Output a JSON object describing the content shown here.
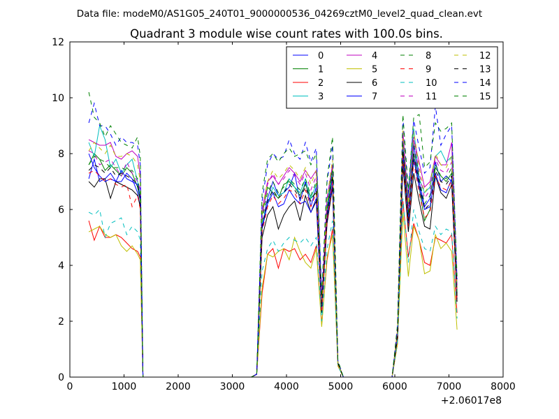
{
  "header": {
    "suptitle": "Data file: modeM0/AS1G05_240T01_9000000536_04269cztM0_level2_quad_clean.evt"
  },
  "chart_data": {
    "type": "line",
    "title": "Quadrant 3 module wise count rates with 100.0s bins.",
    "xlabel": "",
    "ylabel": "",
    "xlim": [
      0,
      8000
    ],
    "ylim": [
      0,
      12
    ],
    "x_offset_label": "+2.06017e8",
    "xticks": [
      0,
      1000,
      2000,
      3000,
      4000,
      5000,
      6000,
      7000,
      8000
    ],
    "xtick_labels": [
      "0",
      "1000",
      "2000",
      "3000",
      "4000",
      "5000",
      "6000",
      "7000",
      "8000"
    ],
    "yticks": [
      0,
      2,
      4,
      6,
      8,
      10,
      12
    ],
    "ytick_labels": [
      "0",
      "2",
      "4",
      "6",
      "8",
      "10",
      "12"
    ],
    "legend_position": "top-right",
    "legend_columns": 4,
    "x": [
      350,
      450,
      550,
      650,
      750,
      850,
      950,
      1050,
      1150,
      1250,
      1300,
      1350,
      1450,
      1550,
      1650,
      1750,
      1850,
      1950,
      2050,
      2150,
      2250,
      2350,
      2450,
      2550,
      2650,
      2750,
      2850,
      2950,
      3050,
      3150,
      3250,
      3350,
      3450,
      3550,
      3650,
      3750,
      3850,
      3950,
      4050,
      4150,
      4250,
      4350,
      4450,
      4550,
      4650,
      4750,
      4850,
      4950,
      5050,
      5150,
      5250,
      5350,
      5450,
      5550,
      5650,
      5750,
      5850,
      5950,
      6050,
      6150,
      6250,
      6350,
      6450,
      6550,
      6650,
      6750,
      6850,
      6950,
      7050,
      7150
    ],
    "series": [
      {
        "name": "0",
        "color": "#0000ff",
        "style": "solid",
        "values": [
          7.1,
          7.8,
          7.0,
          7.1,
          7.3,
          7.0,
          7.0,
          7.3,
          7.1,
          6.6,
          6.1,
          0,
          0,
          0,
          0,
          0,
          0,
          0,
          0,
          0,
          0,
          0,
          0,
          0,
          0,
          0,
          0,
          0,
          0,
          0,
          0,
          0,
          0.1,
          5.4,
          6.4,
          7.0,
          6.5,
          6.6,
          6.8,
          7.3,
          6.3,
          7.0,
          6.1,
          6.8,
          2.5,
          5.8,
          7.2,
          0.5,
          0,
          0,
          0,
          0,
          0,
          0,
          0,
          0,
          0,
          0,
          1.5,
          8.3,
          5.5,
          8.3,
          7.0,
          6.1,
          6.4,
          7.7,
          7.0,
          7.2,
          7.0,
          2.8
        ]
      },
      {
        "name": "1",
        "color": "#008000",
        "style": "solid",
        "values": [
          7.6,
          8.0,
          7.8,
          7.4,
          7.6,
          7.4,
          7.2,
          7.5,
          7.3,
          6.8,
          6.3,
          0,
          0,
          0,
          0,
          0,
          0,
          0,
          0,
          0,
          0,
          0,
          0,
          0,
          0,
          0,
          0,
          0,
          0,
          0,
          0,
          0,
          0.1,
          5.8,
          6.8,
          6.6,
          6.4,
          6.9,
          7.0,
          6.8,
          6.5,
          6.9,
          6.4,
          6.6,
          2.6,
          6.0,
          7.4,
          0.5,
          0,
          0,
          0,
          0,
          0,
          0,
          0,
          0,
          0,
          0,
          1.6,
          8.6,
          5.8,
          8.0,
          6.8,
          5.6,
          6.0,
          7.5,
          7.2,
          7.0,
          7.3,
          3.0
        ]
      },
      {
        "name": "2",
        "color": "#ff0000",
        "style": "solid",
        "values": [
          5.6,
          4.9,
          5.4,
          5.0,
          5.0,
          5.1,
          5.0,
          4.8,
          4.6,
          4.5,
          4.3,
          0,
          0,
          0,
          0,
          0,
          0,
          0,
          0,
          0,
          0,
          0,
          0,
          0,
          0,
          0,
          0,
          0,
          0,
          0,
          0,
          0,
          0.1,
          3.0,
          4.4,
          4.6,
          3.9,
          4.6,
          4.5,
          4.6,
          4.2,
          4.4,
          4.1,
          4.7,
          1.9,
          4.2,
          5.3,
          0.4,
          0,
          0,
          0,
          0,
          0,
          0,
          0,
          0,
          0,
          0,
          1.2,
          6.3,
          4.3,
          5.5,
          4.9,
          4.1,
          4.0,
          5.0,
          4.9,
          4.8,
          5.1,
          2.3
        ]
      },
      {
        "name": "3",
        "color": "#00bfbf",
        "style": "solid",
        "values": [
          8.4,
          7.9,
          9.0,
          8.5,
          7.5,
          7.8,
          7.3,
          7.6,
          7.8,
          7.0,
          6.5,
          0,
          0,
          0,
          0,
          0,
          0,
          0,
          0,
          0,
          0,
          0,
          0,
          0,
          0,
          0,
          0,
          0,
          0,
          0,
          0,
          0,
          0.1,
          5.5,
          6.2,
          6.8,
          6.5,
          6.6,
          7.1,
          6.8,
          6.6,
          7.1,
          6.4,
          6.9,
          2.5,
          6.1,
          7.5,
          0.5,
          0,
          0,
          0,
          0,
          0,
          0,
          0,
          0,
          0,
          0,
          1.6,
          8.4,
          6.4,
          8.9,
          7.1,
          6.6,
          6.8,
          7.9,
          8.1,
          7.7,
          7.9,
          3.2
        ]
      },
      {
        "name": "4",
        "color": "#bf00bf",
        "style": "solid",
        "values": [
          8.5,
          8.4,
          8.3,
          8.3,
          8.4,
          7.9,
          7.8,
          8.0,
          8.1,
          7.9,
          7.2,
          0,
          0,
          0,
          0,
          0,
          0,
          0,
          0,
          0,
          0,
          0,
          0,
          0,
          0,
          0,
          0,
          0,
          0,
          0,
          0,
          0,
          0.1,
          6.0,
          7.0,
          7.2,
          6.9,
          7.2,
          7.5,
          7.3,
          7.0,
          7.4,
          7.1,
          7.4,
          2.7,
          6.4,
          7.6,
          0.5,
          0,
          0,
          0,
          0,
          0,
          0,
          0,
          0,
          0,
          0,
          1.7,
          8.8,
          6.2,
          8.5,
          7.7,
          6.8,
          7.0,
          7.9,
          7.6,
          7.6,
          8.4,
          3.3
        ]
      },
      {
        "name": "5",
        "color": "#bfbf00",
        "style": "solid",
        "values": [
          5.2,
          5.3,
          5.4,
          5.1,
          5.0,
          5.1,
          4.7,
          4.5,
          4.7,
          4.4,
          4.2,
          0,
          0,
          0,
          0,
          0,
          0,
          0,
          0,
          0,
          0,
          0,
          0,
          0,
          0,
          0,
          0,
          0,
          0,
          0,
          0,
          0,
          0.1,
          3.2,
          4.4,
          4.3,
          4.5,
          4.6,
          4.2,
          5.0,
          4.5,
          4.1,
          3.9,
          4.6,
          1.8,
          4.3,
          5.1,
          0.4,
          0,
          0,
          0,
          0,
          0,
          0,
          0,
          0,
          0,
          0,
          1.2,
          5.9,
          3.6,
          5.4,
          4.9,
          3.7,
          3.8,
          5.1,
          4.6,
          4.8,
          4.5,
          1.7
        ]
      },
      {
        "name": "6",
        "color": "#000000",
        "style": "solid",
        "values": [
          7.0,
          6.8,
          7.1,
          7.1,
          6.4,
          7.0,
          6.9,
          6.8,
          6.7,
          6.5,
          6.1,
          0,
          0,
          0,
          0,
          0,
          0,
          0,
          0,
          0,
          0,
          0,
          0,
          0,
          0,
          0,
          0,
          0,
          0,
          0,
          0,
          0,
          0.1,
          5.0,
          5.8,
          6.1,
          5.3,
          5.8,
          6.1,
          6.3,
          5.6,
          6.5,
          5.9,
          6.3,
          2.3,
          5.5,
          6.8,
          0.5,
          0,
          0,
          0,
          0,
          0,
          0,
          0,
          0,
          0,
          0,
          1.4,
          7.6,
          5.2,
          7.3,
          6.3,
          5.4,
          5.3,
          7.2,
          6.6,
          6.4,
          6.9,
          2.7
        ]
      },
      {
        "name": "7",
        "color": "#0000ff",
        "style": "solid",
        "values": [
          8.0,
          7.5,
          7.2,
          7.0,
          7.1,
          7.0,
          7.4,
          7.1,
          7.0,
          6.9,
          6.4,
          0,
          0,
          0,
          0,
          0,
          0,
          0,
          0,
          0,
          0,
          0,
          0,
          0,
          0,
          0,
          0,
          0,
          0,
          0,
          0,
          0,
          0.1,
          5.3,
          6.2,
          6.6,
          6.1,
          6.2,
          6.7,
          6.4,
          6.2,
          6.3,
          5.9,
          6.4,
          2.4,
          5.7,
          6.9,
          0.5,
          0,
          0,
          0,
          0,
          0,
          0,
          0,
          0,
          0,
          0,
          1.5,
          8.0,
          5.6,
          7.8,
          6.8,
          6.0,
          6.1,
          7.3,
          6.7,
          6.6,
          7.1,
          2.9
        ]
      },
      {
        "name": "8",
        "color": "#008000",
        "style": "dashed",
        "values": [
          7.6,
          7.9,
          7.8,
          7.7,
          7.5,
          7.5,
          7.5,
          7.4,
          7.4,
          7.1,
          6.6,
          0,
          0,
          0,
          0,
          0,
          0,
          0,
          0,
          0,
          0,
          0,
          0,
          0,
          0,
          0,
          0,
          0,
          0,
          0,
          0,
          0,
          0.1,
          5.6,
          6.6,
          7.0,
          6.6,
          6.8,
          7.1,
          6.9,
          6.7,
          7.1,
          6.5,
          7.0,
          2.6,
          6.1,
          7.5,
          0.5,
          0,
          0,
          0,
          0,
          0,
          0,
          0,
          0,
          0,
          0,
          1.6,
          8.4,
          5.9,
          8.4,
          7.1,
          6.2,
          6.5,
          7.6,
          7.2,
          7.1,
          7.5,
          3.0
        ]
      },
      {
        "name": "9",
        "color": "#ff0000",
        "style": "dashed",
        "values": [
          7.3,
          7.4,
          7.2,
          7.0,
          7.1,
          6.9,
          6.8,
          6.9,
          6.1,
          6.5,
          6.0,
          0,
          0,
          0,
          0,
          0,
          0,
          0,
          0,
          0,
          0,
          0,
          0,
          0,
          0,
          0,
          0,
          0,
          0,
          0,
          0,
          0,
          0.1,
          5.2,
          6.1,
          6.5,
          6.2,
          6.4,
          6.7,
          6.6,
          6.2,
          6.7,
          6.1,
          6.6,
          2.4,
          5.6,
          7.0,
          0.5,
          0,
          0,
          0,
          0,
          0,
          0,
          0,
          0,
          0,
          0,
          1.5,
          7.9,
          5.4,
          7.7,
          6.6,
          5.7,
          5.9,
          7.2,
          6.8,
          6.7,
          7.0,
          2.8
        ]
      },
      {
        "name": "10",
        "color": "#00bfbf",
        "style": "dashed",
        "values": [
          5.9,
          5.8,
          6.0,
          5.0,
          5.5,
          5.6,
          5.7,
          5.1,
          5.4,
          5.2,
          4.9,
          0,
          0,
          0,
          0,
          0,
          0,
          0,
          0,
          0,
          0,
          0,
          0,
          0,
          0,
          0,
          0,
          0,
          0,
          0,
          0,
          0,
          0.1,
          3.8,
          4.6,
          4.9,
          4.5,
          4.8,
          5.0,
          4.9,
          4.8,
          5.0,
          4.7,
          5.0,
          2.0,
          4.6,
          5.6,
          0.4,
          0,
          0,
          0,
          0,
          0,
          0,
          0,
          0,
          0,
          0,
          1.3,
          6.4,
          4.1,
          6.0,
          5.2,
          4.6,
          4.5,
          5.4,
          5.1,
          5.3,
          5.2,
          2.1
        ]
      },
      {
        "name": "11",
        "color": "#bf00bf",
        "style": "dashed",
        "values": [
          8.1,
          8.0,
          7.6,
          7.7,
          7.8,
          7.5,
          7.2,
          7.7,
          7.3,
          7.0,
          6.7,
          0,
          0,
          0,
          0,
          0,
          0,
          0,
          0,
          0,
          0,
          0,
          0,
          0,
          0,
          0,
          0,
          0,
          0,
          0,
          0,
          0,
          0.1,
          5.7,
          6.9,
          7.3,
          6.9,
          7.1,
          7.4,
          7.2,
          6.9,
          7.3,
          6.7,
          7.2,
          2.6,
          6.3,
          7.6,
          0.5,
          0,
          0,
          0,
          0,
          0,
          0,
          0,
          0,
          0,
          0,
          1.6,
          8.6,
          6.0,
          8.6,
          7.3,
          6.4,
          6.7,
          7.8,
          7.4,
          7.3,
          7.7,
          3.1
        ]
      },
      {
        "name": "12",
        "color": "#bfbf00",
        "style": "dashed",
        "values": [
          8.1,
          8.4,
          8.2,
          8.0,
          8.3,
          7.9,
          7.9,
          8.0,
          7.9,
          7.6,
          7.0,
          0,
          0,
          0,
          0,
          0,
          0,
          0,
          0,
          0,
          0,
          0,
          0,
          0,
          0,
          0,
          0,
          0,
          0,
          0,
          0,
          0,
          0.1,
          5.9,
          7.0,
          7.4,
          7.1,
          7.3,
          7.6,
          7.4,
          7.1,
          7.5,
          6.9,
          7.4,
          2.7,
          6.4,
          7.8,
          0.5,
          0,
          0,
          0,
          0,
          0,
          0,
          0,
          0,
          0,
          0,
          1.7,
          8.9,
          6.2,
          8.8,
          7.5,
          6.6,
          6.9,
          8.0,
          7.6,
          7.5,
          7.9,
          3.2
        ]
      },
      {
        "name": "13",
        "color": "#000000",
        "style": "dashed",
        "values": [
          7.4,
          7.6,
          7.5,
          7.3,
          7.5,
          7.2,
          7.3,
          7.2,
          7.1,
          6.9,
          6.4,
          0,
          0,
          0,
          0,
          0,
          0,
          0,
          0,
          0,
          0,
          0,
          0,
          0,
          0,
          0,
          0,
          0,
          0,
          0,
          0,
          0,
          0.1,
          5.4,
          6.3,
          6.7,
          6.4,
          6.6,
          6.9,
          6.7,
          6.4,
          6.8,
          6.3,
          6.7,
          2.5,
          5.8,
          7.2,
          0.5,
          0,
          0,
          0,
          0,
          0,
          0,
          0,
          0,
          0,
          0,
          1.5,
          8.1,
          5.6,
          8.0,
          6.9,
          6.0,
          6.2,
          7.4,
          7.0,
          6.9,
          7.2,
          2.9
        ]
      },
      {
        "name": "14",
        "color": "#0000ff",
        "style": "dashed",
        "values": [
          9.1,
          9.8,
          9.0,
          9.0,
          8.7,
          8.3,
          8.6,
          8.4,
          8.4,
          8.3,
          7.6,
          0,
          0,
          0,
          0,
          0,
          0,
          0,
          0,
          0,
          0,
          0,
          0,
          0,
          0,
          0,
          0,
          0,
          0,
          0,
          0,
          0,
          0.1,
          6.3,
          7.6,
          8.0,
          7.8,
          7.9,
          8.5,
          8.0,
          7.8,
          8.4,
          7.7,
          8.2,
          3.0,
          7.0,
          8.3,
          0.6,
          0,
          0,
          0,
          0,
          0,
          0,
          0,
          0,
          0,
          0,
          1.8,
          9.3,
          6.5,
          9.2,
          8.2,
          7.3,
          7.5,
          9.7,
          8.3,
          8.7,
          9.0,
          3.5
        ]
      },
      {
        "name": "15",
        "color": "#008000",
        "style": "dashed",
        "values": [
          10.2,
          9.3,
          9.1,
          8.6,
          9.0,
          8.7,
          8.4,
          8.3,
          8.2,
          8.6,
          7.9,
          0,
          0,
          0,
          0,
          0,
          0,
          0,
          0,
          0,
          0,
          0,
          0,
          0,
          0,
          0,
          0,
          0,
          0,
          0,
          0,
          0,
          0.1,
          6.6,
          7.8,
          8.0,
          7.7,
          8.0,
          8.2,
          7.9,
          8.0,
          8.1,
          7.6,
          8.0,
          2.9,
          7.1,
          8.6,
          0.6,
          0,
          0,
          0,
          0,
          0,
          0,
          0,
          0,
          0,
          0,
          1.9,
          9.4,
          6.7,
          9.3,
          9.4,
          7.5,
          7.7,
          9.1,
          8.8,
          8.9,
          9.1,
          3.6
        ]
      }
    ]
  }
}
